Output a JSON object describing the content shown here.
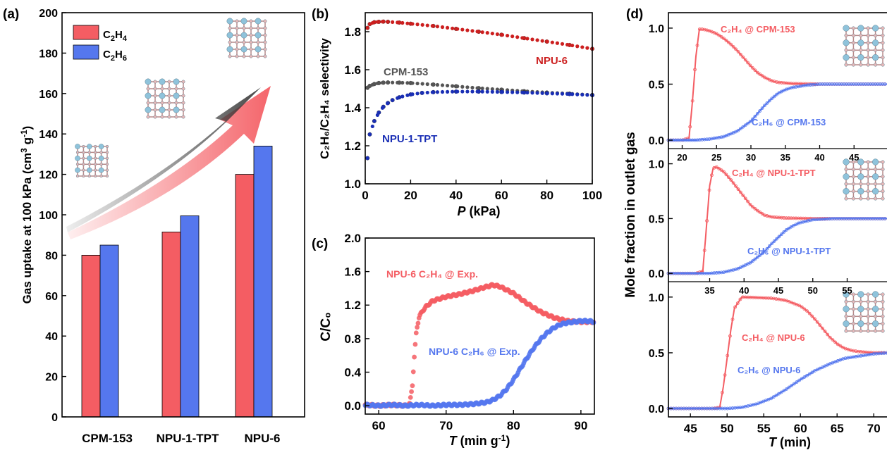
{
  "panels": {
    "a": "(a)",
    "b": "(b)",
    "c": "(c)",
    "d": "(d)"
  },
  "colors": {
    "red": "#f45d63",
    "blue": "#5577ee",
    "darkred": "#cc1f1f",
    "darkblue": "#1a2fb5",
    "grey": "#555555"
  },
  "icons": [
    "framework-structure-icon",
    "growth-arrow-icon"
  ],
  "chart_data": [
    {
      "id": "a",
      "type": "bar",
      "ylabel_main": "Gas uptake at 100 kPa (cm",
      "ylabel_sup1": "3",
      "ylabel_mid": " g",
      "ylabel_sup2": "-1",
      "ylabel_end": ")",
      "categories": [
        "CPM-153",
        "NPU-1-TPT",
        "NPU-6"
      ],
      "series": [
        {
          "name_base": "C",
          "name_sub1": "2",
          "name_mid": "H",
          "name_sub2": "4",
          "values": [
            80,
            91.5,
            120
          ]
        },
        {
          "name_base": "C",
          "name_sub1": "2",
          "name_mid": "H",
          "name_sub2": "6",
          "values": [
            85,
            99.5,
            134
          ]
        }
      ],
      "ylim": [
        0,
        200
      ],
      "yticks": [
        "0",
        "20",
        "40",
        "60",
        "80",
        "100",
        "120",
        "140",
        "160",
        "180",
        "200"
      ],
      "legend": "top-left"
    },
    {
      "id": "b",
      "type": "scatter",
      "xlabel_main": "P",
      "xlabel_unit": " (kPa)",
      "ylabel": "C₂H₆/C₂H₄ selectivity",
      "xlim": [
        0,
        100
      ],
      "ylim": [
        1.0,
        1.9
      ],
      "xticks": [
        "0",
        "20",
        "40",
        "60",
        "80",
        "100"
      ],
      "yticks": [
        "1.0",
        "1.2",
        "1.4",
        "1.6",
        "1.8"
      ],
      "series": [
        {
          "label": "NPU-6",
          "x": [
            1,
            2,
            4,
            6,
            8,
            10,
            15,
            20,
            30,
            40,
            50,
            60,
            70,
            80,
            90,
            100
          ],
          "y": [
            1.82,
            1.84,
            1.85,
            1.852,
            1.853,
            1.852,
            1.848,
            1.842,
            1.83,
            1.815,
            1.8,
            1.784,
            1.766,
            1.748,
            1.73,
            1.71
          ]
        },
        {
          "label": "CPM-153",
          "x": [
            1,
            2,
            4,
            6,
            8,
            10,
            15,
            20,
            30,
            40,
            50,
            60,
            70,
            80,
            90,
            100
          ],
          "y": [
            1.505,
            1.515,
            1.525,
            1.53,
            1.532,
            1.533,
            1.532,
            1.53,
            1.522,
            1.513,
            1.503,
            1.495,
            1.487,
            1.48,
            1.474,
            1.467
          ]
        },
        {
          "label": "NPU-1-TPT",
          "x": [
            1,
            2,
            4,
            6,
            8,
            10,
            12,
            15,
            20,
            25,
            30,
            40,
            50,
            60,
            70,
            80,
            90,
            100
          ],
          "y": [
            1.135,
            1.26,
            1.33,
            1.375,
            1.405,
            1.425,
            1.44,
            1.455,
            1.47,
            1.478,
            1.482,
            1.485,
            1.485,
            1.483,
            1.48,
            1.476,
            1.472,
            1.466
          ]
        }
      ]
    },
    {
      "id": "c",
      "type": "scatter",
      "xlabel_main": "T",
      "xlabel_unit": " (min g",
      "xlabel_sup": "-1",
      "xlabel_end": ")",
      "ylabel": "C/C₀",
      "xlim": [
        58,
        92
      ],
      "ylim": [
        -0.1,
        2.0
      ],
      "xticks": [
        "60",
        "70",
        "80",
        "90"
      ],
      "yticks": [
        "0.0",
        "0.4",
        "0.8",
        "1.2",
        "1.6",
        "2.0"
      ],
      "series": [
        {
          "label": "NPU-6 C₂H₄ @ Exp.",
          "x": [
            58,
            60,
            62,
            64,
            64.6,
            65,
            65.3,
            65.6,
            66,
            66.5,
            67,
            68,
            70,
            72,
            74,
            76,
            77,
            78,
            80,
            82,
            84,
            86,
            88,
            90,
            92
          ],
          "y": [
            0.01,
            0.0,
            0.01,
            0.0,
            0.02,
            0.25,
            0.6,
            0.9,
            1.06,
            1.13,
            1.18,
            1.25,
            1.3,
            1.33,
            1.37,
            1.42,
            1.44,
            1.42,
            1.34,
            1.22,
            1.12,
            1.05,
            1.01,
            1.0,
            1.0
          ]
        },
        {
          "label": "NPU-6 C₂H₆ @ Exp.",
          "x": [
            58,
            60,
            62,
            64,
            66,
            68,
            70,
            72,
            74,
            76,
            77,
            78,
            79,
            80,
            81,
            82,
            83,
            84,
            85,
            86,
            87,
            88,
            89,
            90,
            91,
            92
          ],
          "y": [
            0.01,
            0.0,
            0.01,
            0.0,
            0.01,
            0.0,
            0.01,
            0.01,
            0.02,
            0.04,
            0.07,
            0.12,
            0.2,
            0.31,
            0.44,
            0.57,
            0.69,
            0.79,
            0.87,
            0.93,
            0.97,
            0.99,
            1.0,
            1.01,
            1.01,
            1.0
          ]
        }
      ]
    },
    {
      "id": "d",
      "type": "line",
      "ylabel": "Mole fraction in outlet gas",
      "xlabel_main": "T",
      "xlabel_unit": " (min)",
      "subplots": [
        {
          "xlim": [
            18,
            50
          ],
          "xticks": [
            "20",
            "25",
            "30",
            "35",
            "40",
            "45"
          ],
          "yticks": [
            "0.0",
            "0.5",
            "1.0"
          ],
          "ylim": [
            -0.05,
            1.1
          ],
          "series": [
            {
              "label": "C₂H₄ @ CPM-153",
              "x": [
                18,
                20,
                21,
                21.5,
                22,
                22.5,
                23,
                24,
                25,
                26,
                27,
                28,
                29,
                30,
                31,
                32,
                33,
                34,
                36,
                40,
                45,
                50
              ],
              "y": [
                0,
                0,
                0.02,
                0.35,
                0.75,
                0.99,
                0.99,
                0.975,
                0.95,
                0.91,
                0.86,
                0.8,
                0.73,
                0.66,
                0.6,
                0.56,
                0.53,
                0.515,
                0.505,
                0.5,
                0.5,
                0.5
              ]
            },
            {
              "label": "C₂H₆ @ CPM-153",
              "x": [
                18,
                22,
                24,
                26,
                28,
                30,
                31,
                32,
                33,
                34,
                35,
                36,
                38,
                40,
                45,
                50
              ],
              "y": [
                0,
                0,
                0.01,
                0.03,
                0.08,
                0.17,
                0.24,
                0.31,
                0.37,
                0.42,
                0.45,
                0.47,
                0.49,
                0.5,
                0.5,
                0.5
              ]
            }
          ]
        },
        {
          "xlim": [
            29,
            61
          ],
          "xticks": [
            "35",
            "40",
            "45",
            "50",
            "55"
          ],
          "yticks": [
            "0.0",
            "0.5",
            "1.0"
          ],
          "ylim": [
            -0.05,
            1.1
          ],
          "series": [
            {
              "label": "C₂H₄ @ NPU-1-TPT",
              "x": [
                29,
                33,
                34,
                34.5,
                35,
                35.5,
                36,
                37,
                38,
                39,
                40,
                41,
                42,
                43,
                44,
                46,
                50,
                55,
                61
              ],
              "y": [
                0,
                0,
                0.02,
                0.4,
                0.8,
                0.96,
                0.97,
                0.93,
                0.86,
                0.78,
                0.7,
                0.62,
                0.57,
                0.53,
                0.515,
                0.505,
                0.5,
                0.5,
                0.5
              ]
            },
            {
              "label": "C₂H₆ @ NPU-1-TPT",
              "x": [
                29,
                35,
                37,
                39,
                41,
                43,
                44,
                45,
                46,
                47,
                48,
                50,
                53,
                56,
                61
              ],
              "y": [
                0,
                0,
                0.01,
                0.04,
                0.1,
                0.2,
                0.27,
                0.33,
                0.39,
                0.43,
                0.46,
                0.49,
                0.5,
                0.5,
                0.5
              ]
            }
          ]
        },
        {
          "xlim": [
            42,
            72
          ],
          "xticks": [
            "45",
            "50",
            "55",
            "60",
            "65",
            "70"
          ],
          "yticks": [
            "0.0",
            "0.5",
            "1.0"
          ],
          "ylim": [
            -0.05,
            1.1
          ],
          "series": [
            {
              "label": "C₂H₄ @ NPU-6",
              "x": [
                42,
                48,
                49,
                49.5,
                50,
                50.5,
                51,
                52,
                54,
                56,
                58,
                60,
                61,
                62,
                63,
                64,
                65,
                66,
                67,
                68,
                70,
                72
              ],
              "y": [
                0,
                0,
                0.01,
                0.2,
                0.45,
                0.7,
                0.9,
                1.0,
                0.995,
                0.99,
                0.97,
                0.92,
                0.87,
                0.8,
                0.72,
                0.64,
                0.58,
                0.54,
                0.52,
                0.51,
                0.5,
                0.5
              ]
            },
            {
              "label": "C₂H₆ @ NPU-6",
              "x": [
                42,
                50,
                52,
                54,
                56,
                58,
                60,
                62,
                64,
                66,
                68,
                70,
                72
              ],
              "y": [
                0,
                0,
                0.01,
                0.04,
                0.09,
                0.17,
                0.26,
                0.34,
                0.4,
                0.45,
                0.47,
                0.49,
                0.5
              ]
            }
          ]
        }
      ]
    }
  ]
}
